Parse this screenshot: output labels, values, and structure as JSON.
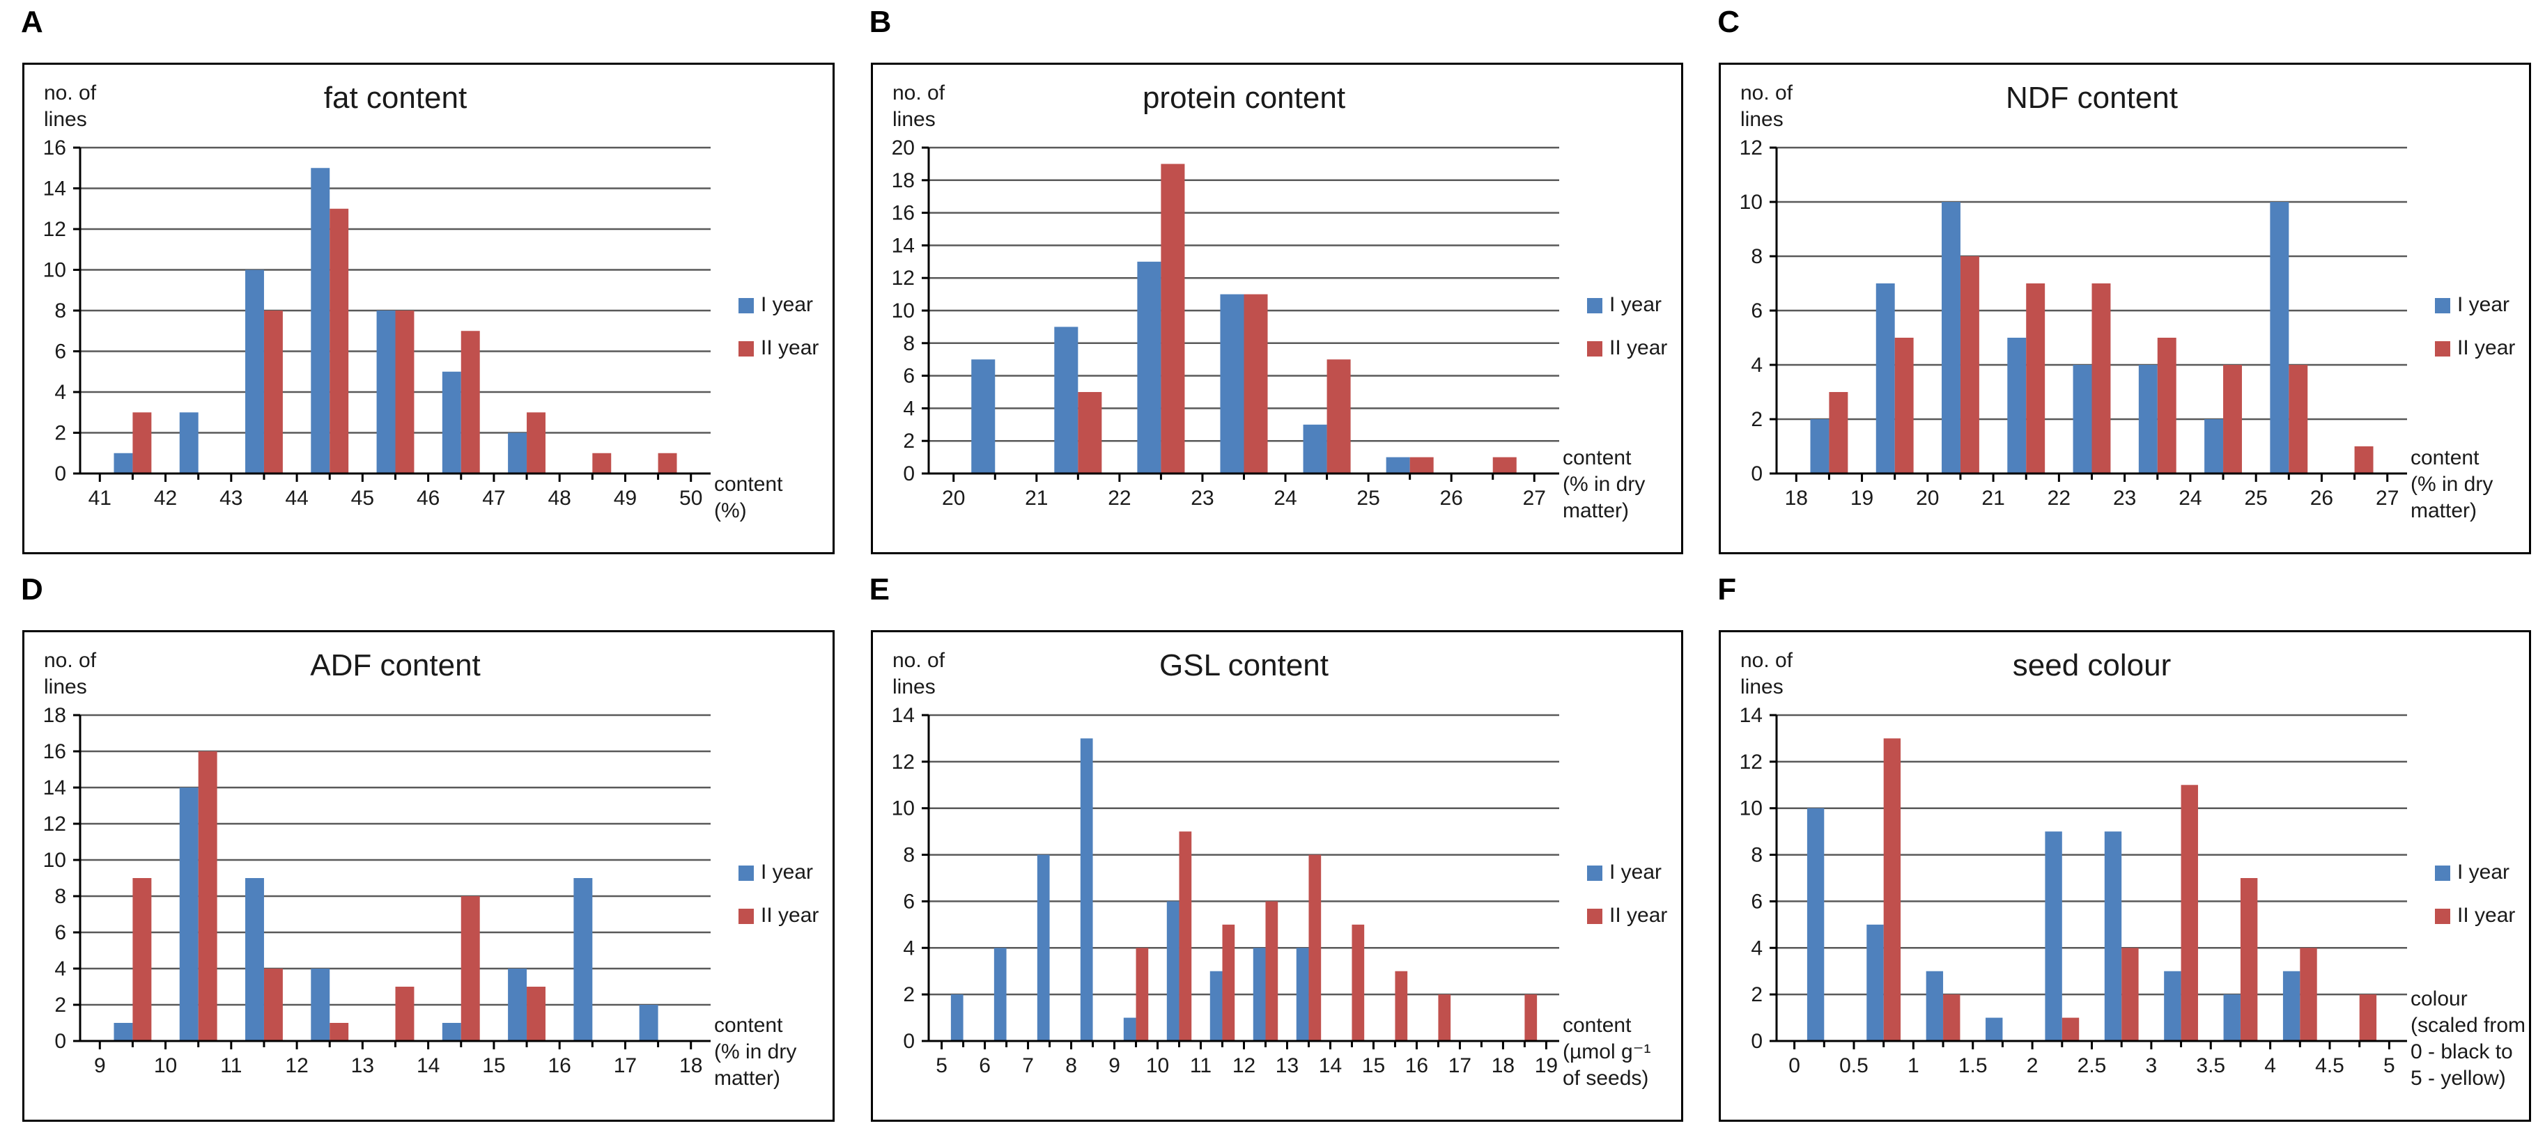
{
  "figure_background": "#ffffff",
  "text_color": "#1a1a1a",
  "gridline_color": "#595959",
  "axis_color": "#000000",
  "legend": {
    "position": "right",
    "items": [
      {
        "label": "I year",
        "color": "#4F81BD"
      },
      {
        "label": "II year",
        "color": "#C0504D"
      }
    ]
  },
  "chart_data": [
    {
      "panel": "A",
      "type": "bar",
      "title": "fat content",
      "ylabel_lines": [
        "no. of",
        "lines"
      ],
      "xlabel_lines": [
        "content",
        "(%)"
      ],
      "x_tick_labels": [
        "41",
        "42",
        "43",
        "44",
        "45",
        "46",
        "47",
        "48",
        "49",
        "50"
      ],
      "ylim": [
        0,
        16
      ],
      "y_tick_step": 2,
      "grid": true,
      "legend": [
        "I year",
        "II year"
      ],
      "legend_position": "right",
      "series": [
        {
          "name": "I year",
          "color": "#4F81BD",
          "values": [
            1,
            3,
            10,
            15,
            8,
            5,
            2,
            0,
            0
          ]
        },
        {
          "name": "II year",
          "color": "#C0504D",
          "values": [
            3,
            0,
            8,
            13,
            8,
            7,
            3,
            1,
            1
          ]
        }
      ]
    },
    {
      "panel": "B",
      "type": "bar",
      "title": "protein content",
      "ylabel_lines": [
        "no. of",
        "lines"
      ],
      "xlabel_lines": [
        "content",
        "(% in dry",
        "matter)"
      ],
      "x_tick_labels": [
        "20",
        "21",
        "22",
        "23",
        "24",
        "25",
        "26",
        "27"
      ],
      "ylim": [
        0,
        20
      ],
      "y_tick_step": 2,
      "grid": true,
      "legend": [
        "I year",
        "II year"
      ],
      "legend_position": "right",
      "series": [
        {
          "name": "I year",
          "color": "#4F81BD",
          "values": [
            7,
            9,
            13,
            11,
            3,
            1,
            0
          ]
        },
        {
          "name": "II year",
          "color": "#C0504D",
          "values": [
            0,
            5,
            19,
            11,
            7,
            1,
            1
          ]
        }
      ]
    },
    {
      "panel": "C",
      "type": "bar",
      "title": "NDF content",
      "ylabel_lines": [
        "no. of",
        "lines"
      ],
      "xlabel_lines": [
        "content",
        "(% in dry",
        "matter)"
      ],
      "x_tick_labels": [
        "18",
        "19",
        "20",
        "21",
        "22",
        "23",
        "24",
        "25",
        "26",
        "27"
      ],
      "ylim": [
        0,
        12
      ],
      "y_tick_step": 2,
      "grid": true,
      "legend": [
        "I year",
        "II year"
      ],
      "legend_position": "right",
      "series": [
        {
          "name": "I year",
          "color": "#4F81BD",
          "values": [
            2,
            7,
            10,
            5,
            4,
            4,
            2,
            10,
            0
          ]
        },
        {
          "name": "II year",
          "color": "#C0504D",
          "values": [
            3,
            5,
            8,
            7,
            7,
            5,
            4,
            4,
            1
          ]
        }
      ]
    },
    {
      "panel": "D",
      "type": "bar",
      "title": "ADF content",
      "ylabel_lines": [
        "no. of",
        "lines"
      ],
      "xlabel_lines": [
        "content",
        "(% in dry",
        "matter)"
      ],
      "x_tick_labels": [
        "9",
        "10",
        "11",
        "12",
        "13",
        "14",
        "15",
        "16",
        "17",
        "18"
      ],
      "ylim": [
        0,
        18
      ],
      "y_tick_step": 2,
      "grid": true,
      "legend": [
        "I year",
        "II year"
      ],
      "legend_position": "right",
      "series": [
        {
          "name": "I year",
          "color": "#4F81BD",
          "values": [
            1,
            14,
            9,
            4,
            0,
            1,
            4,
            9,
            2
          ]
        },
        {
          "name": "II year",
          "color": "#C0504D",
          "values": [
            9,
            16,
            4,
            1,
            3,
            8,
            3,
            0,
            0
          ]
        }
      ]
    },
    {
      "panel": "E",
      "type": "bar",
      "title": "GSL content",
      "ylabel_lines": [
        "no. of",
        "lines"
      ],
      "xlabel_lines": [
        "content",
        "(µmol g⁻¹",
        "of seeds)"
      ],
      "x_tick_labels": [
        "5",
        "6",
        "7",
        "8",
        "9",
        "10",
        "11",
        "12",
        "13",
        "14",
        "15",
        "16",
        "17",
        "18",
        "19"
      ],
      "ylim": [
        0,
        14
      ],
      "y_tick_step": 2,
      "grid": true,
      "legend": [
        "I year",
        "II year"
      ],
      "legend_position": "right",
      "series": [
        {
          "name": "I year",
          "color": "#4F81BD",
          "values": [
            2,
            4,
            8,
            13,
            1,
            6,
            3,
            4,
            4,
            0,
            0,
            0,
            0,
            0
          ]
        },
        {
          "name": "II year",
          "color": "#C0504D",
          "values": [
            0,
            0,
            0,
            0,
            4,
            9,
            5,
            6,
            8,
            5,
            3,
            2,
            0,
            2
          ]
        }
      ]
    },
    {
      "panel": "F",
      "type": "bar",
      "title": "seed colour",
      "ylabel_lines": [
        "no. of",
        "lines"
      ],
      "xlabel_lines": [
        "colour",
        "(scaled from",
        "0 - black to",
        "5 - yellow)"
      ],
      "x_tick_labels": [
        "0",
        "0.5",
        "1",
        "1.5",
        "2",
        "2.5",
        "3",
        "3.5",
        "4",
        "4.5",
        "5"
      ],
      "ylim": [
        0,
        14
      ],
      "y_tick_step": 2,
      "grid": true,
      "legend": [
        "I year",
        "II year"
      ],
      "legend_position": "right",
      "series": [
        {
          "name": "I year",
          "color": "#4F81BD",
          "values": [
            10,
            5,
            3,
            1,
            9,
            9,
            3,
            2,
            3,
            0
          ]
        },
        {
          "name": "II year",
          "color": "#C0504D",
          "values": [
            0,
            13,
            2,
            0,
            1,
            4,
            11,
            7,
            4,
            2
          ]
        }
      ]
    }
  ]
}
